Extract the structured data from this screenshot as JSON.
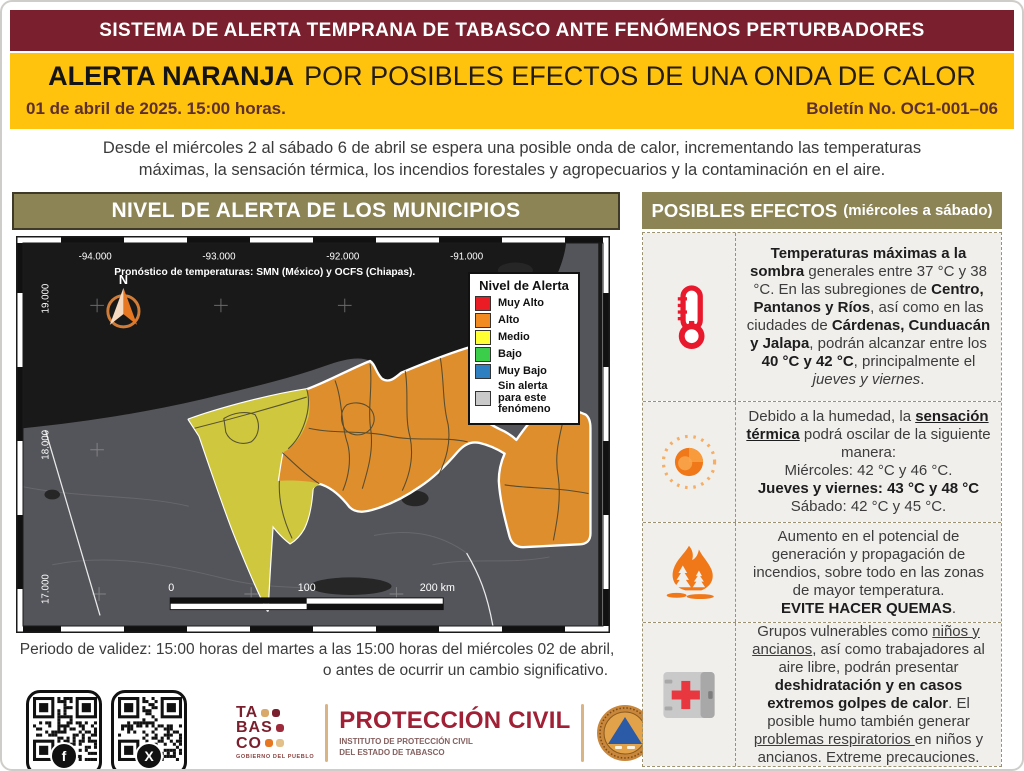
{
  "theme": {
    "maroon": "#7A1F2D",
    "yellow": "#FFC20D",
    "olive": "#8C8455",
    "crimson": "#A02136",
    "panel_bg": "#F1EFEC",
    "alert_red_icon": "#E8192C",
    "alert_orange_icon": "#EE7623"
  },
  "page": {
    "top_banner": "SISTEMA DE ALERTA TEMPRANA DE TABASCO ANTE FENÓMENOS PERTURBADORES",
    "alert_level": "ALERTA NARANJA",
    "alert_rest": "POR POSIBLES EFECTOS DE UNA ONDA DE CALOR",
    "date_line": "01 de abril de 2025. 15:00 horas.",
    "bulletin_no": "Boletín No. OC1-001–06",
    "description_line1": "Desde el miércoles 2 al sábado 6 de abril se espera una posible onda de calor, incrementando las temperaturas",
    "description_line2": "máximas, la sensación térmica, los incendios forestales y agropecuarios y la contaminación en el aire."
  },
  "map_section": {
    "header": "NIVEL DE ALERTA DE LOS MUNICIPIOS",
    "map": {
      "title": "Pronóstico de temperaturas: SMN (México) y OCFS (Chiapas).",
      "north_label": "N",
      "lon_labels": [
        "-94.000",
        "-93.000",
        "-92.000",
        "-91.000"
      ],
      "lat_labels": [
        "19.000",
        "18.000",
        "17.000"
      ],
      "scale_labels": [
        "0",
        "100",
        "200 km"
      ],
      "legend": {
        "title": "Nivel de Alerta",
        "items": [
          {
            "label": "Muy Alto",
            "color": "#EC1C24"
          },
          {
            "label": "Alto",
            "color": "#F18A21"
          },
          {
            "label": "Medio",
            "color": "#FFFF33"
          },
          {
            "label": "Bajo",
            "color": "#3BCE4A"
          },
          {
            "label": "Muy Bajo",
            "color": "#2D7FC1"
          },
          {
            "label": "Sin alerta para este fenómeno",
            "color": "#C9C9C9"
          }
        ]
      },
      "alert_colors": {
        "medio_on_map": "#CFC73E",
        "alto_on_map": "#DE8E2D"
      }
    },
    "validity_line1": "Periodo de validez: 15:00 horas del martes a las 15:00 horas del miércoles 02 de abril,",
    "validity_line2": "o antes de ocurrir un cambio significativo."
  },
  "effects": {
    "header_main": "POSIBLES EFECTOS",
    "header_sub": "(miércoles a sábado)",
    "items": [
      {
        "icon": "thermometer-icon",
        "segments": [
          {
            "t": "Temperaturas máximas a la sombra",
            "b": true
          },
          {
            "t": " generales entre 37 °C y 38 °C. En las subregiones de "
          },
          {
            "t": "Centro, Pantanos y Ríos",
            "b": true
          },
          {
            "t": ", así como en las ciudades de "
          },
          {
            "t": "Cárdenas, Cunduacán y Jalapa",
            "b": true
          },
          {
            "t": ", podrán alcanzar entre los "
          },
          {
            "t": "40 °C y 42 °C",
            "b": true
          },
          {
            "t": ", principalmente el "
          },
          {
            "t": "jueves y viernes",
            "i": true
          },
          {
            "t": "."
          }
        ]
      },
      {
        "icon": "sun-icon",
        "segments": [
          {
            "t": "Debido a la humedad, la "
          },
          {
            "t": "sensación térmica",
            "b": true,
            "u": true
          },
          {
            "t": " podrá oscilar de la siguiente manera:"
          },
          {
            "br": true
          },
          {
            "t": "Miércoles: 42 °C y 46 °C."
          },
          {
            "br": true
          },
          {
            "t": "Jueves y viernes: 43 °C y 48 °C",
            "b": true
          },
          {
            "br": true
          },
          {
            "t": "Sábado: 42 °C y 45 °C."
          }
        ]
      },
      {
        "icon": "wildfire-icon",
        "segments": [
          {
            "t": "Aumento en el potencial de generación y propagación de incendios, sobre todo en las zonas de mayor temperatura."
          },
          {
            "br": true
          },
          {
            "t": "EVITE HACER QUEMAS",
            "b": true
          },
          {
            "t": "."
          }
        ]
      },
      {
        "icon": "first-aid-icon",
        "segments": [
          {
            "t": "Grupos vulnerables como "
          },
          {
            "t": "niños y ancianos",
            "u": true
          },
          {
            "t": ", así como trabajadores al aire libre, podrán presentar "
          },
          {
            "t": "deshidratación y en casos extremos golpes de calor",
            "b": true
          },
          {
            "t": ". El posible humo también generar "
          },
          {
            "t": "problemas respiratorios ",
            "u": true
          },
          {
            "t": "en niños y ancianos. Extreme precauciones."
          }
        ]
      }
    ]
  },
  "footer": {
    "facebook_badge": "f",
    "x_badge": "X",
    "tabasco_lines": [
      "TA",
      "BAS",
      "CO"
    ],
    "tabasco_sub": "GOBIERNO DEL PUEBLO",
    "pc_title": "PROTECCIÓN CIVIL",
    "pc_sub1": "INSTITUTO DE PROTECCIÓN CIVIL",
    "pc_sub2": "DEL ESTADO DE TABASCO"
  }
}
